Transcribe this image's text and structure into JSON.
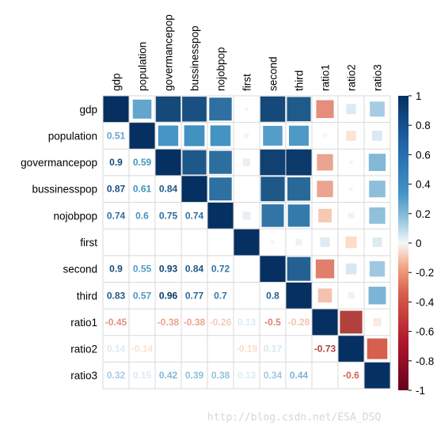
{
  "chart_data": {
    "type": "heatmap",
    "method": "corrplot-mixed",
    "upper": "square",
    "lower": "number",
    "variables": [
      "gdp",
      "population",
      "govermancepop",
      "bussinesspop",
      "nojobpop",
      "first",
      "second",
      "third",
      "ratio1",
      "ratio2",
      "ratio3"
    ],
    "matrix": [
      [
        1,
        0.51,
        0.9,
        0.87,
        0.74,
        0.02,
        0.9,
        0.83,
        -0.45,
        0.14,
        0.32
      ],
      [
        0.51,
        1,
        0.59,
        0.61,
        0.6,
        -0.03,
        0.55,
        0.57,
        -0.02,
        -0.14,
        0.15
      ],
      [
        0.9,
        0.59,
        1,
        0.84,
        0.75,
        0.08,
        0.93,
        0.96,
        -0.38,
        0.02,
        0.42
      ],
      [
        0.87,
        0.61,
        0.84,
        1,
        0.74,
        0.0,
        0.84,
        0.77,
        -0.38,
        -0.02,
        0.39
      ],
      [
        0.74,
        0.6,
        0.75,
        0.74,
        1,
        0.09,
        0.72,
        0.7,
        -0.26,
        -0.05,
        0.38
      ],
      [
        0.02,
        -0.03,
        0.08,
        0.0,
        0.09,
        1,
        0.02,
        0.06,
        0.13,
        -0.19,
        0.13
      ],
      [
        0.9,
        0.55,
        0.93,
        0.84,
        0.72,
        0.02,
        1,
        0.8,
        -0.5,
        0.17,
        0.34
      ],
      [
        0.83,
        0.57,
        0.96,
        0.77,
        0.7,
        0.06,
        0.8,
        1,
        -0.28,
        -0.06,
        0.44
      ],
      [
        -0.45,
        -0.02,
        -0.38,
        -0.38,
        -0.26,
        0.13,
        -0.5,
        -0.28,
        1,
        -0.73,
        -0.09
      ],
      [
        0.14,
        -0.14,
        0.02,
        -0.02,
        -0.05,
        -0.19,
        0.17,
        -0.06,
        -0.73,
        1,
        -0.6
      ],
      [
        0.32,
        0.15,
        0.42,
        0.39,
        0.38,
        0.13,
        0.34,
        0.44,
        -0.09,
        -0.6,
        1
      ]
    ],
    "lower_labels": [
      [
        "",
        "",
        "",
        "",
        "",
        "",
        "",
        "",
        "",
        "",
        ""
      ],
      [
        "0.51",
        "",
        "",
        "",
        "",
        "",
        "",
        "",
        "",
        "",
        ""
      ],
      [
        "0.9",
        "0.59",
        "",
        "",
        "",
        "",
        "",
        "",
        "",
        "",
        ""
      ],
      [
        "0.87",
        "0.61",
        "0.84",
        "",
        "",
        "",
        "",
        "",
        "",
        "",
        ""
      ],
      [
        "0.74",
        "0.6",
        "0.75",
        "0.74",
        "",
        "",
        "",
        "",
        "",
        "",
        ""
      ],
      [
        "",
        "",
        "",
        "",
        "",
        "",
        "",
        "",
        "",
        "",
        ""
      ],
      [
        "0.9",
        "0.55",
        "0.93",
        "0.84",
        "0.72",
        "",
        "",
        "",
        "",
        "",
        ""
      ],
      [
        "0.83",
        "0.57",
        "0.96",
        "0.77",
        "0.7",
        "",
        "0.8",
        "",
        "",
        "",
        ""
      ],
      [
        "-0.45",
        "",
        "-0.38",
        "-0.38",
        "-0.26",
        "0.13",
        "-0.5",
        "-0.28",
        "",
        "",
        ""
      ],
      [
        "0.14",
        "-0.14",
        "",
        "",
        "",
        "-0.19",
        "0.17",
        "",
        "-0.73",
        "",
        ""
      ],
      [
        "0.32",
        "0.15",
        "0.42",
        "0.39",
        "0.38",
        "0.13",
        "0.34",
        "0.44",
        "",
        "-0.6",
        ""
      ]
    ],
    "colorbar": {
      "range": [
        -1,
        1
      ],
      "ticks": [
        "1",
        "0.8",
        "0.6",
        "0.4",
        "0.2",
        "0",
        "-0.2",
        "-0.4",
        "-0.6",
        "-0.8",
        "-1"
      ]
    },
    "palette": {
      "neg_dark": "#67001F",
      "neg_mid": "#D6604D",
      "neg_light": "#FDDBC7",
      "zero": "#F7F7F7",
      "pos_light": "#D1E5F0",
      "pos_mid": "#4393C3",
      "pos_dark": "#053061"
    }
  },
  "watermark": "http://blog.csdn.net/ESA_DSQ"
}
